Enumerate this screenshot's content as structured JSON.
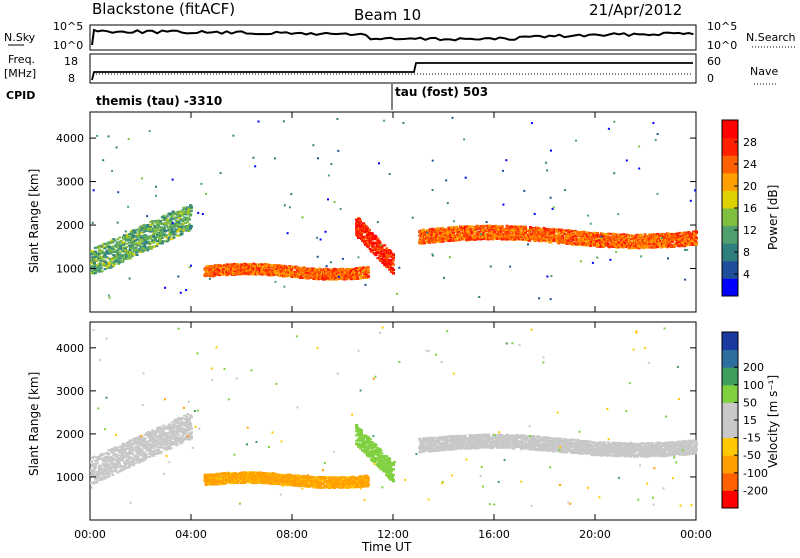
{
  "header": {
    "site": "Blackstone (fitACF)",
    "beam": "Beam 10",
    "date": "21/Apr/2012"
  },
  "noise_panel": {
    "left_label": "N.Sky",
    "right_label": "N.Search",
    "left_ticks": [
      "10^5",
      "10^0"
    ],
    "right_ticks": [
      "10^5",
      "10^0"
    ]
  },
  "freq_panel": {
    "left_label_1": "Freq.",
    "left_label_2": "[MHz]",
    "left_ticks": [
      "18",
      "8"
    ],
    "right_label": "Nave",
    "right_ticks": [
      "60",
      "0"
    ],
    "cpid_label": "CPID",
    "cpid_segments": [
      {
        "text": "themis (tau)  -3310",
        "start_hour": 0.0
      },
      {
        "text": "tau (fost) 503",
        "start_hour": 12.0
      }
    ]
  },
  "colors": {
    "power": [
      "#0000ff",
      "#1f4e9a",
      "#2f7f7f",
      "#4f9f6f",
      "#7fbf3f",
      "#dfd000",
      "#ffa000",
      "#ff6000",
      "#ff2000",
      "#ff0000"
    ],
    "velocity": [
      "#ff0000",
      "#ff6000",
      "#ffa000",
      "#ffc800",
      "#c8c8c8",
      "#c8c8c8",
      "#80d040",
      "#3f9f5f",
      "#2f6f9f",
      "#1a3aa0"
    ]
  },
  "chart_data": [
    {
      "type": "heatmap",
      "name": "power",
      "ylabel": "Slant Range [km]",
      "yticks": [
        1000,
        2000,
        3000,
        4000
      ],
      "ylim": [
        0,
        4600
      ],
      "xlim": [
        0,
        24
      ],
      "colorbar_label": "Power [dB]",
      "colorbar_ticks": [
        4,
        8,
        12,
        16,
        20,
        24,
        28
      ],
      "colorbar_range": [
        0,
        32
      ],
      "scatter_bands": [
        {
          "start": 0.0,
          "end": 4.0,
          "r0": 1150,
          "r1": 2500,
          "level": 12
        },
        {
          "start": 4.5,
          "end": 11.0,
          "r0": 800,
          "r1": 1100,
          "level": 24
        },
        {
          "start": 10.5,
          "end": 12.0,
          "r0": 1100,
          "r1": 2000,
          "level": 28
        },
        {
          "start": 13.0,
          "end": 24.0,
          "r0": 1500,
          "r1": 2000,
          "level": 24
        }
      ]
    },
    {
      "type": "heatmap",
      "name": "velocity",
      "ylabel": "Slant Range [km]",
      "yticks": [
        1000,
        2000,
        3000,
        4000
      ],
      "ylim": [
        0,
        4600
      ],
      "xlim": [
        0,
        24
      ],
      "xlabel": "Time UT",
      "xticks": [
        "00:00",
        "04:00",
        "08:00",
        "12:00",
        "16:00",
        "20:00",
        "00:00"
      ],
      "colorbar_label": "Velocity [m s⁻¹]",
      "colorbar_ticks": [
        -200,
        -100,
        -50,
        -15,
        15,
        50,
        100,
        200
      ],
      "scatter_bands": [
        {
          "start": 0.0,
          "end": 4.0,
          "r0": 1150,
          "r1": 2500,
          "level": 0
        },
        {
          "start": 4.5,
          "end": 11.0,
          "r0": 800,
          "r1": 1100,
          "level": -60
        },
        {
          "start": 10.5,
          "end": 12.0,
          "r0": 1100,
          "r1": 2000,
          "level": 30
        },
        {
          "start": 13.0,
          "end": 24.0,
          "r0": 1500,
          "r1": 2000,
          "level": 0
        }
      ]
    }
  ]
}
